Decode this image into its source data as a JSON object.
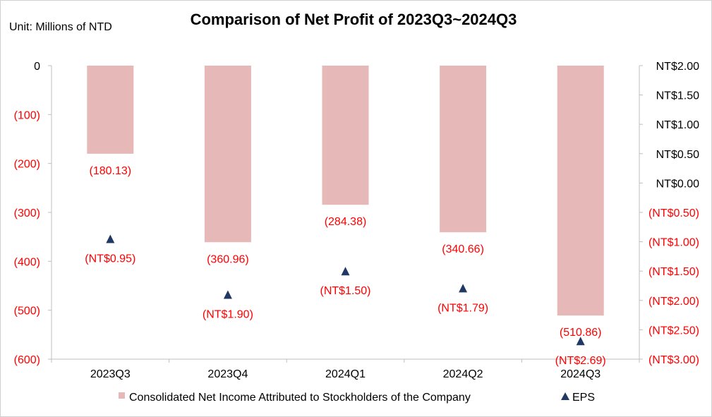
{
  "chart_data": {
    "type": "bar",
    "title": "Comparison of Net Profit of 2023Q3~2024Q3",
    "unit_label": "Unit: Millions of NTD",
    "categories": [
      "2023Q3",
      "2023Q4",
      "2024Q1",
      "2024Q2",
      "2024Q3"
    ],
    "series": [
      {
        "name": "Consolidated Net Income Attributed to Stockholders of the Company",
        "type": "bar",
        "axis": "left",
        "values": [
          -180.13,
          -360.96,
          -284.38,
          -340.66,
          -510.86
        ],
        "labels": [
          "(180.13)",
          "(360.96)",
          "(284.38)",
          "(340.66)",
          "(510.86)"
        ],
        "color": "#E6B8B7"
      },
      {
        "name": "EPS",
        "type": "scatter",
        "marker": "triangle",
        "axis": "right",
        "values": [
          -0.95,
          -1.9,
          -1.5,
          -1.79,
          -2.69
        ],
        "labels": [
          "(NT$0.95)",
          "(NT$1.90)",
          "(NT$1.50)",
          "(NT$1.79)",
          "(NT$2.69)"
        ],
        "color": "#1F3864"
      }
    ],
    "left_axis": {
      "ylim": [
        -600,
        0
      ],
      "ticks": [
        0,
        -100,
        -200,
        -300,
        -400,
        -500,
        -600
      ],
      "tick_labels": [
        "0",
        "(100)",
        "(200)",
        "(300)",
        "(400)",
        "(500)",
        "(600)"
      ]
    },
    "right_axis": {
      "ylim": [
        -3.0,
        2.0
      ],
      "ticks": [
        2.0,
        1.5,
        1.0,
        0.5,
        0.0,
        -0.5,
        -1.0,
        -1.5,
        -2.0,
        -2.5,
        -3.0
      ],
      "tick_labels": [
        "NT$2.00",
        "NT$1.50",
        "NT$1.00",
        "NT$0.50",
        "NT$0.00",
        "(NT$0.50)",
        "(NT$1.00)",
        "(NT$1.50)",
        "(NT$2.00)",
        "(NT$2.50)",
        "(NT$3.00)"
      ]
    },
    "grid": false,
    "legend_position": "bottom",
    "colors": {
      "negative_label": "#FF0000",
      "positive_label": "#000000",
      "axis_line": "#BFBFBF"
    }
  }
}
